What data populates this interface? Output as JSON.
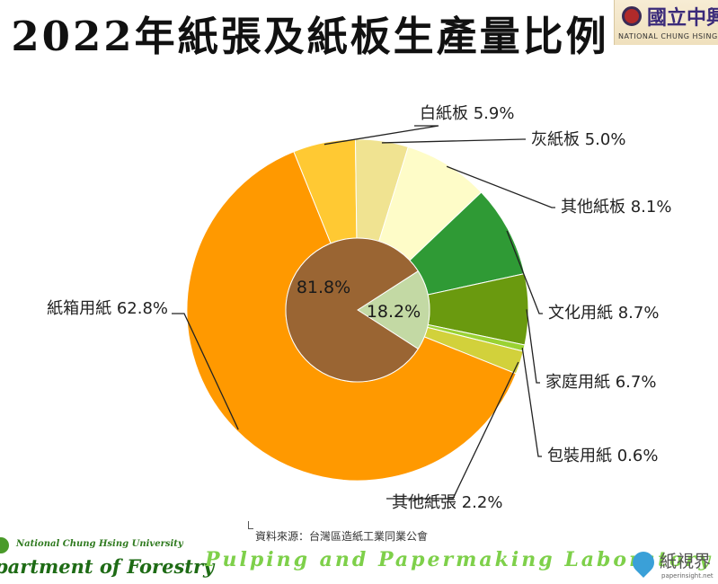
{
  "slide": {
    "title": "2022年紙張及紙板生產量比例",
    "source": "資料來源：台灣區造紙工業同業公會",
    "footer_university": "National Chung Hsing University",
    "footer_department": "partment of Forestry",
    "footer_lab": "Pulping  and  Papermaking  Laboratory",
    "logo_ntu_cn": "國立中興",
    "logo_ntu_en": "NATIONAL CHUNG HSING UN",
    "logo_paper_cn": "紙視界",
    "logo_paper_url": "paperinsight.net"
  },
  "chart_data": {
    "type": "pie",
    "title": "2022年紙張及紙板生產量比例",
    "inner": [
      {
        "label": "81.8%",
        "value": 81.8,
        "color": "#9a6533"
      },
      {
        "label": "18.2%",
        "value": 18.2,
        "color": "#c3d9a4"
      }
    ],
    "outer": [
      {
        "label": "白紙板 5.9%",
        "name": "白紙板",
        "value": 5.9,
        "color": "#ffc933"
      },
      {
        "label": "灰紙板 5.0%",
        "name": "灰紙板",
        "value": 5.0,
        "color": "#f0e391"
      },
      {
        "label": "其他紙板 8.1%",
        "name": "其他紙板",
        "value": 8.1,
        "color": "#fefcc8"
      },
      {
        "label": "文化用紙 8.7%",
        "name": "文化用紙",
        "value": 8.7,
        "color": "#2f9a35"
      },
      {
        "label": "家庭用紙 6.7%",
        "name": "家庭用紙",
        "value": 6.7,
        "color": "#6a9a0f"
      },
      {
        "label": "包裝用紙 0.6%",
        "name": "包裝用紙",
        "value": 0.6,
        "color": "#9ad233"
      },
      {
        "label": "其他紙張 2.2%",
        "name": "其他紙張",
        "value": 2.2,
        "color": "#d2d13b"
      },
      {
        "label": "紙箱用紙 62.8%",
        "name": "紙箱用紙",
        "value": 62.8,
        "color": "#ff9900"
      }
    ]
  }
}
